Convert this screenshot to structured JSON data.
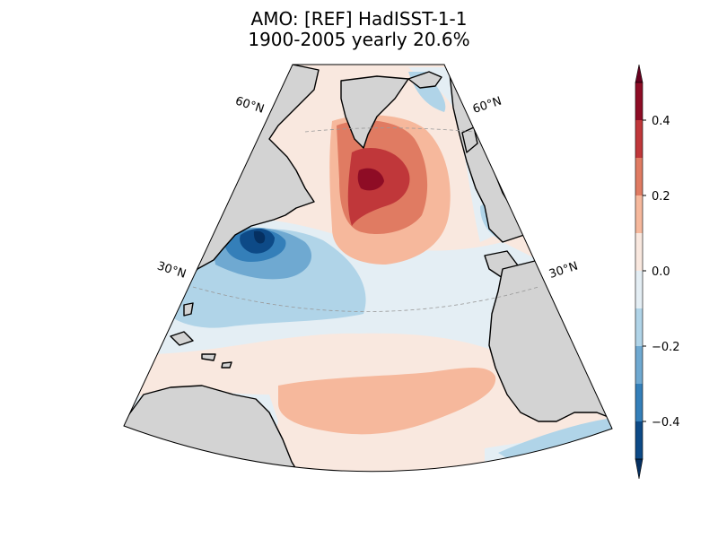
{
  "title": {
    "line1": "AMO: [REF] HadISST-1-1",
    "line2": "1900-2005 yearly 20.6%"
  },
  "map": {
    "projection": "conic sector",
    "region": "North Atlantic",
    "lat_labels": [
      "60°N",
      "60°N",
      "30°N",
      "30°N"
    ],
    "gridlines": "dashed",
    "land_color": "#d3d3d3",
    "ocean_background": "#f9e8df"
  },
  "colorbar": {
    "cmap": "RdBu_r",
    "ticks": [
      "0.4",
      "0.2",
      "0.0",
      "−0.2",
      "−0.4"
    ],
    "levels": [
      {
        "range": "> 0.5",
        "color": "#67001f"
      },
      {
        "range": "0.4 to 0.5",
        "color": "#8e0c25"
      },
      {
        "range": "0.3 to 0.4",
        "color": "#c0373a"
      },
      {
        "range": "0.2 to 0.3",
        "color": "#e07b62"
      },
      {
        "range": "0.1 to 0.2",
        "color": "#f6b89c"
      },
      {
        "range": "0.0 to 0.1",
        "color": "#f9e8df"
      },
      {
        "range": "-0.1 to 0.0",
        "color": "#e4eef4"
      },
      {
        "range": "-0.2 to -0.1",
        "color": "#b0d4e8"
      },
      {
        "range": "-0.3 to -0.2",
        "color": "#6fa9d1"
      },
      {
        "range": "-0.4 to -0.3",
        "color": "#347fb9"
      },
      {
        "range": "-0.5 to -0.4",
        "color": "#0d4a87"
      },
      {
        "range": "< -0.5",
        "color": "#053061"
      }
    ]
  }
}
